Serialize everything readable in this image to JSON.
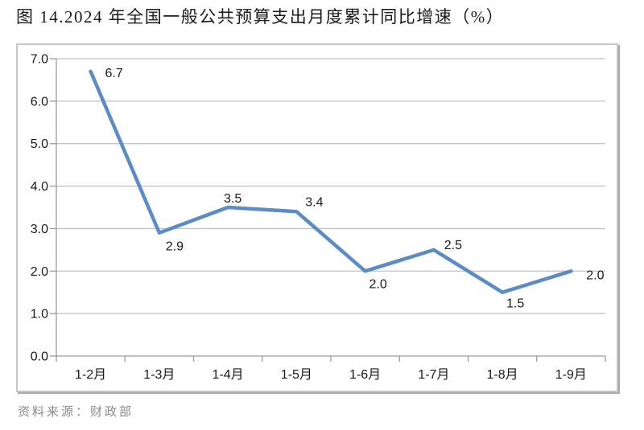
{
  "chart_data": {
    "type": "line",
    "title": "图 14.2024 年全国一般公共预算支出月度累计同比增速（%）",
    "categories": [
      "1-2月",
      "1-3月",
      "1-4月",
      "1-5月",
      "1-6月",
      "1-7月",
      "1-8月",
      "1-9月"
    ],
    "values": [
      6.7,
      2.9,
      3.5,
      3.4,
      2.0,
      2.5,
      1.5,
      2.0
    ],
    "data_labels": [
      "6.7",
      "2.9",
      "3.5",
      "3.4",
      "2.0",
      "2.5",
      "1.5",
      "2.0"
    ],
    "xlabel": "",
    "ylabel": "",
    "ylim": [
      0,
      7
    ],
    "ytick_step": 1,
    "ytick_labels": [
      "0.0",
      "1.0",
      "2.0",
      "3.0",
      "4.0",
      "5.0",
      "6.0",
      "7.0"
    ],
    "grid": true,
    "legend": "none"
  },
  "source_note": "资料来源：财政部",
  "colors": {
    "line": "#5B8CC4",
    "grid": "#C1C1C1",
    "axis": "#9B9B9B",
    "text": "#1A1A1A",
    "source": "#8A8A8A",
    "frame_border": "#C5C5C5",
    "frame_shadow": "#ABABAB",
    "background": "#FFFFFF"
  }
}
